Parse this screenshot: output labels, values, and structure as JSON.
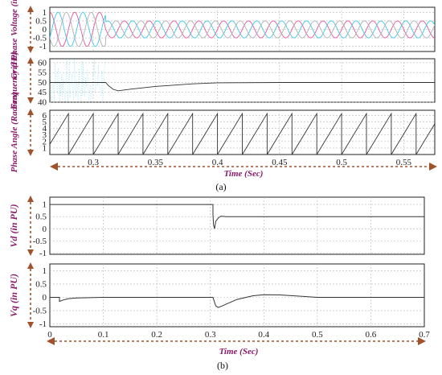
{
  "colors": {
    "label": "#8b1a6b",
    "arrow": "#a0522d",
    "trace": "#333333",
    "phase_a": "#e0589f",
    "phase_b": "#3fc7e6",
    "phase_c": "#b0b0b0"
  },
  "captions": {
    "a": "(a)",
    "b": "(b)"
  },
  "chart_data": [
    {
      "type": "line",
      "panel": "a",
      "ylabel": "Grid Phase Voltage (in PU)",
      "yticks": [
        "1",
        "0.5",
        "0",
        "-0.5",
        "-1"
      ],
      "ylim": [
        -1.3,
        1.3
      ],
      "xlim": [
        0.265,
        0.575
      ],
      "grid": true,
      "series": [
        {
          "phase": "a",
          "amplitude_before": 1.0,
          "amplitude_after": 0.5,
          "frequency_hz": 50,
          "phase_offset_deg": 0
        },
        {
          "phase": "b",
          "amplitude_before": 1.0,
          "amplitude_after": 0.5,
          "frequency_hz": 50,
          "phase_offset_deg": -120
        },
        {
          "phase": "c",
          "amplitude_before": 1.0,
          "amplitude_after": 0.5,
          "frequency_hz": 50,
          "phase_offset_deg": 120
        }
      ],
      "events": {
        "sag_time": 0.31
      }
    },
    {
      "type": "line",
      "panel": "a",
      "ylabel": "Frequency (Hz)",
      "yticks": [
        "60",
        "55",
        "50",
        "45",
        "40"
      ],
      "ylim": [
        40,
        62
      ],
      "xlim": [
        0.265,
        0.575
      ],
      "grid": true,
      "series": [
        {
          "x": [
            0.265,
            0.31,
            0.312,
            0.316,
            0.32,
            0.33,
            0.35,
            0.38,
            0.4,
            0.45,
            0.575
          ],
          "y": [
            50,
            50,
            48.5,
            46.5,
            45.8,
            46.6,
            48,
            49.3,
            49.8,
            50,
            50
          ]
        }
      ],
      "noise_region": [
        0.265,
        0.31
      ]
    },
    {
      "type": "line",
      "panel": "a",
      "ylabel": "Phase Angle (Radian)",
      "yticks": [
        "6",
        "5",
        "4",
        "3",
        "2",
        "1"
      ],
      "ylim": [
        0,
        6.8
      ],
      "xlim": [
        0.265,
        0.575
      ],
      "grid": true,
      "series": [
        {
          "waveform": "sawtooth",
          "min": 0,
          "max": 6.28,
          "period": 0.02,
          "first_reset": 0.28
        }
      ],
      "xticks": [
        "0.3",
        "0.35",
        "0.4",
        "0.45",
        "0.5",
        "0.55"
      ],
      "xtick_values": [
        0.3,
        0.35,
        0.4,
        0.45,
        0.5,
        0.55
      ],
      "xlabel": "Time (Sec)"
    },
    {
      "type": "line",
      "panel": "b",
      "ylabel": "Vd (in PU)",
      "yticks": [
        "1",
        "0.5",
        "0",
        "-0.5",
        "-1"
      ],
      "ylim": [
        -1.05,
        1.3
      ],
      "xlim": [
        0,
        0.7
      ],
      "grid": true,
      "series": [
        {
          "x": [
            0,
            0.305,
            0.305,
            0.306,
            0.308,
            0.31,
            0.315,
            0.32,
            0.33,
            0.35,
            0.4,
            0.7
          ],
          "y": [
            1.0,
            1.0,
            0.58,
            0.15,
            0.0,
            0.3,
            0.45,
            0.52,
            0.5,
            0.5,
            0.5,
            0.5
          ]
        }
      ]
    },
    {
      "type": "line",
      "panel": "b",
      "ylabel": "Vq (in PU)",
      "yticks": [
        "1",
        "0.5",
        "0",
        "-0.5",
        "-1"
      ],
      "ylim": [
        -1.1,
        1.25
      ],
      "xlim": [
        0,
        0.7
      ],
      "grid": true,
      "series": [
        {
          "x": [
            0,
            0.018,
            0.018,
            0.025,
            0.035,
            0.05,
            0.1,
            0.305,
            0.31,
            0.315,
            0.32,
            0.33,
            0.35,
            0.38,
            0.4,
            0.43,
            0.46,
            0.5,
            0.55,
            0.7
          ],
          "y": [
            0,
            0,
            -0.15,
            -0.1,
            -0.05,
            -0.02,
            0,
            0,
            -0.32,
            -0.38,
            -0.34,
            -0.25,
            -0.08,
            0.06,
            0.1,
            0.09,
            0.05,
            0.0,
            0.0,
            0.0
          ]
        }
      ],
      "xticks": [
        "0",
        "0.1",
        "0.2",
        "0.3",
        "0.4",
        "0.5",
        "0.6",
        "0.7"
      ],
      "xtick_values": [
        0,
        0.1,
        0.2,
        0.3,
        0.4,
        0.5,
        0.6,
        0.7
      ],
      "xlabel": "Time (Sec)"
    }
  ]
}
